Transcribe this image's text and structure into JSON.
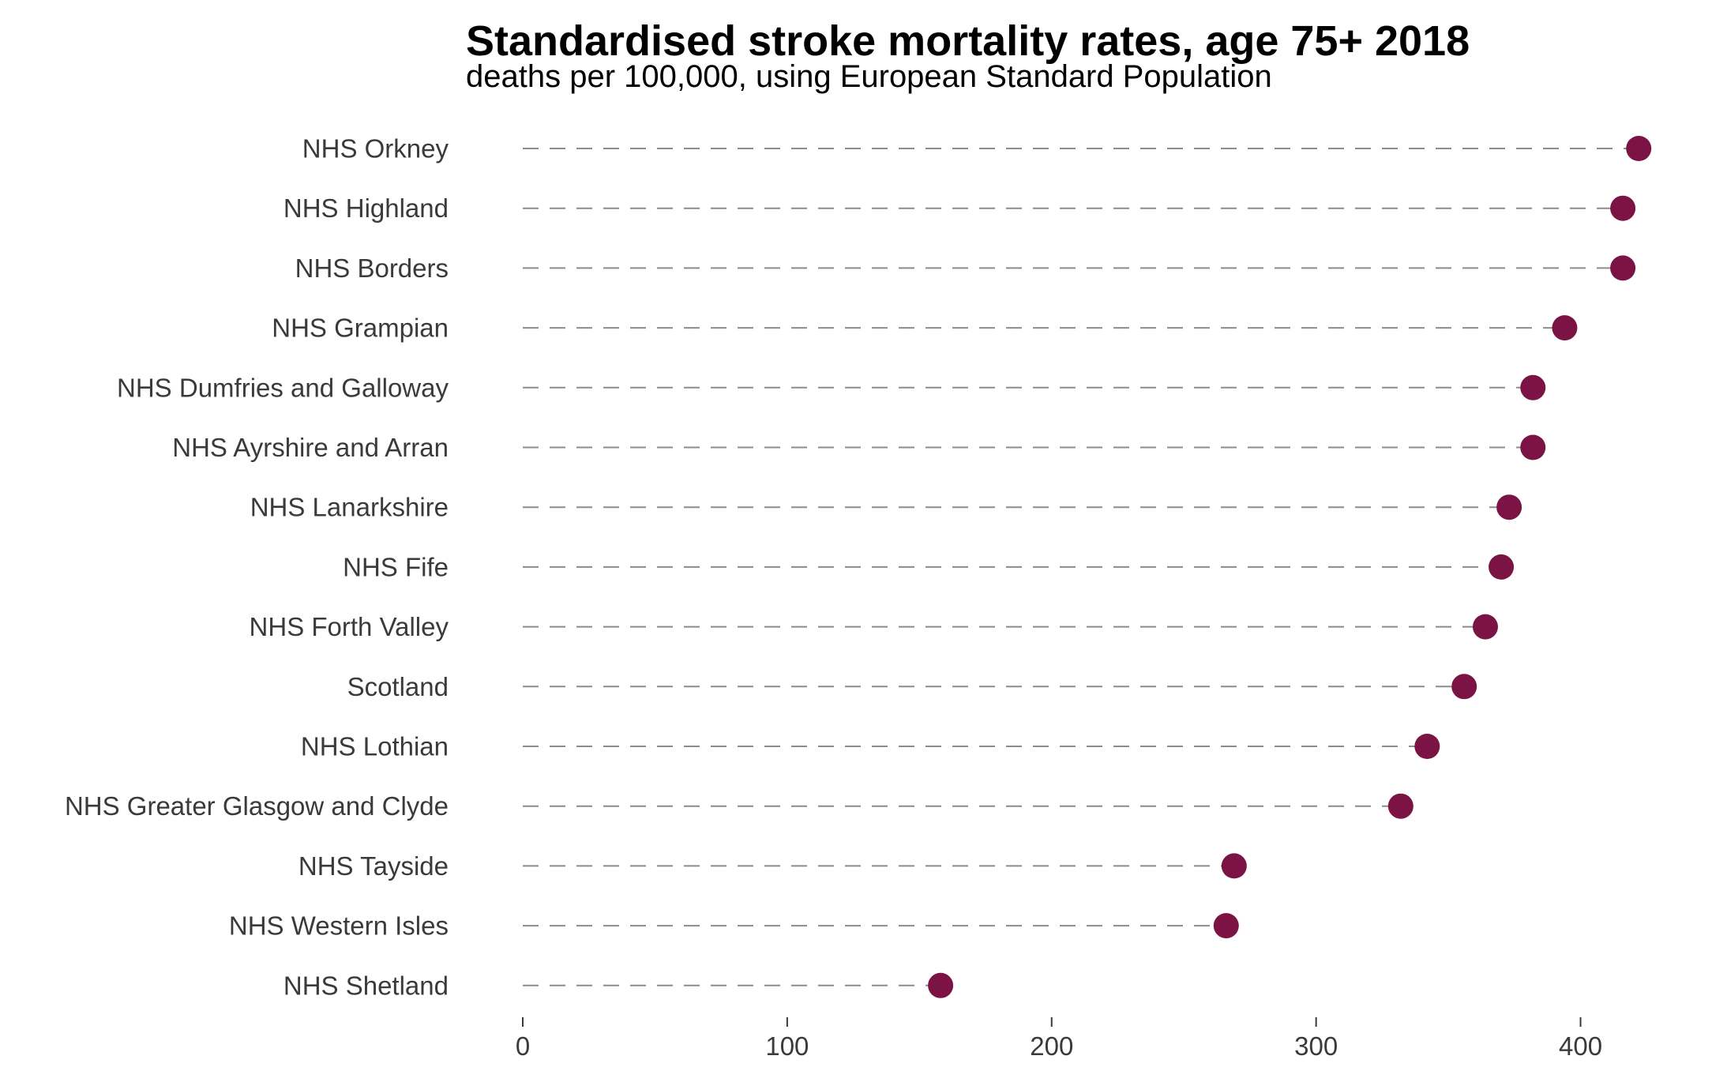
{
  "chart_data": {
    "type": "lollipop",
    "title": "Standardised stroke mortality rates, age 75+ 2018",
    "subtitle": "deaths per 100,000, using European Standard Population",
    "xlabel": "",
    "ylabel": "",
    "xlim": [
      0,
      430
    ],
    "x_ticks": [
      0,
      100,
      200,
      300,
      400
    ],
    "x_tick_labels": [
      "0",
      "100",
      "200",
      "300",
      "400"
    ],
    "grid": false,
    "legend": "none",
    "colors": {
      "point": "#7b1344",
      "line": "#8c8c8c",
      "text": "#3a3a3a",
      "title": "#000000"
    },
    "categories": [
      "NHS Orkney",
      "NHS Highland",
      "NHS Borders",
      "NHS Grampian",
      "NHS Dumfries and Galloway",
      "NHS Ayrshire and Arran",
      "NHS Lanarkshire",
      "NHS Fife",
      "NHS Forth Valley",
      "Scotland",
      "NHS Lothian",
      "NHS Greater Glasgow and Clyde",
      "NHS Tayside",
      "NHS Western Isles",
      "NHS Shetland"
    ],
    "values": [
      422,
      416,
      416,
      394,
      382,
      382,
      373,
      370,
      364,
      356,
      342,
      332,
      269,
      266,
      158
    ]
  }
}
